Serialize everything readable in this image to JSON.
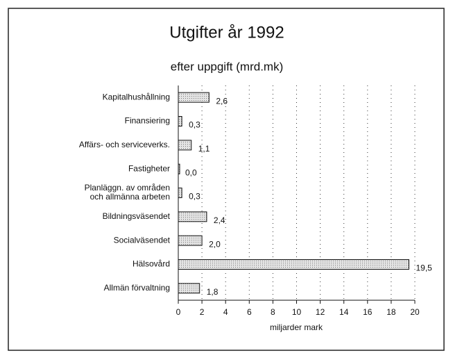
{
  "chart_data": {
    "type": "bar",
    "orientation": "horizontal",
    "title": "Utgifter år 1992",
    "subtitle": "efter uppgift (mrd.mk)",
    "categories": [
      "Kapitalhushållning",
      "Finansiering",
      "Affärs- och serviceverks.",
      "Fastigheter",
      "Planläggn. av områden\noch allmänna arbeten",
      "Bildningsväsendet",
      "Socialväsendet",
      "Hälsovård",
      "Allmän förvaltning"
    ],
    "values": [
      2.6,
      0.3,
      1.1,
      0.0,
      0.3,
      2.4,
      2.0,
      19.5,
      1.8
    ],
    "value_labels": [
      "2,6",
      "0,3",
      "1,1",
      "0,0",
      "0,3",
      "2,4",
      "2,0",
      "19,5",
      "1,8"
    ],
    "color": "#d0d0d0",
    "xlabel": "miljarder mark",
    "xlim": [
      0,
      20
    ],
    "xticks": [
      0,
      2,
      4,
      6,
      8,
      10,
      12,
      14,
      16,
      18,
      20
    ],
    "grid": true
  }
}
